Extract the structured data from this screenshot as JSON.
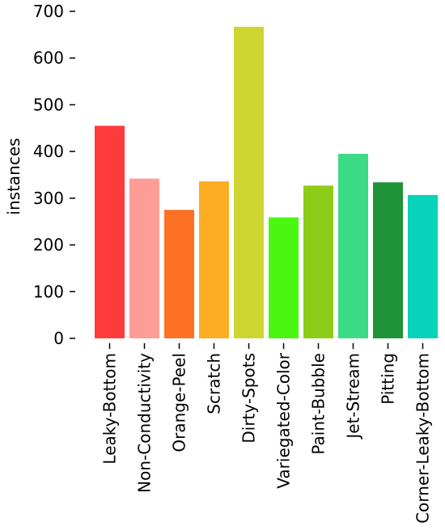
{
  "chart_data": {
    "type": "bar",
    "categories": [
      "Leaky-Bottom",
      "Non-Conductivity",
      "Orange-Peel",
      "Scratch",
      "Dirty-Spots",
      "Variegated-Color",
      "Paint-Bubble",
      "Jet-Stream",
      "Pitting",
      "Corner-Leaky-Bottom"
    ],
    "values": [
      455,
      342,
      275,
      336,
      667,
      259,
      327,
      395,
      334,
      307
    ],
    "colors": [
      "#fe3a3b",
      "#fe9d95",
      "#fc7123",
      "#fdad22",
      "#ced530",
      "#49f711",
      "#8ecc1a",
      "#3cdb87",
      "#1f9337",
      "#0ad3bb"
    ],
    "xlabel": "",
    "ylabel": "instances",
    "ylim": [
      0,
      700
    ],
    "yticks": [
      0,
      100,
      200,
      300,
      400,
      500,
      600,
      700
    ],
    "grid": false,
    "legend": "none"
  }
}
